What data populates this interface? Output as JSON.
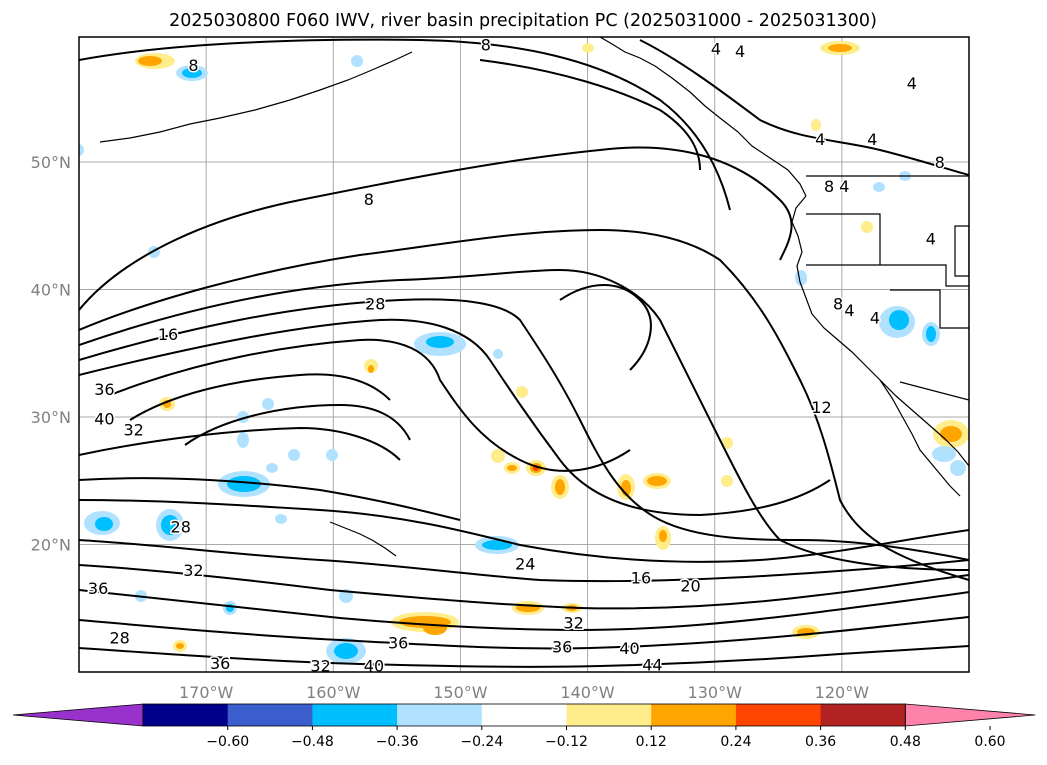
{
  "title": "2025030800 F060 IWV, river basin precipitation PC (2025031000 - 2025031300)",
  "map": {
    "lon_range": [
      -180,
      -110
    ],
    "lat_range": [
      10,
      59.8
    ],
    "lat_ticks": [
      {
        "value": 50,
        "label": "50°N"
      },
      {
        "value": 40,
        "label": "40°N"
      },
      {
        "value": 30,
        "label": "30°N"
      },
      {
        "value": 20,
        "label": "20°N"
      }
    ],
    "lon_ticks": [
      {
        "value": -170,
        "label": "170°W"
      },
      {
        "value": -160,
        "label": "160°W"
      },
      {
        "value": -150,
        "label": "150°W"
      },
      {
        "value": -140,
        "label": "140°W"
      },
      {
        "value": -130,
        "label": "130°W"
      },
      {
        "value": -120,
        "label": "120°W"
      }
    ],
    "grid": true,
    "iwv_contour_labels": [
      {
        "text": "8",
        "lon": -148.0,
        "lat": 59.2
      },
      {
        "text": "4",
        "lon": -129.9,
        "lat": 58.9
      },
      {
        "text": "4",
        "lon": -128.0,
        "lat": 58.7
      },
      {
        "text": "8",
        "lon": -171.0,
        "lat": 57.6
      },
      {
        "text": "4",
        "lon": -114.5,
        "lat": 56.2
      },
      {
        "text": "4",
        "lon": -121.7,
        "lat": 51.8
      },
      {
        "text": "4",
        "lon": -117.6,
        "lat": 51.8
      },
      {
        "text": "8",
        "lon": -112.3,
        "lat": 50.0
      },
      {
        "text": "8",
        "lon": -121.0,
        "lat": 48.1
      },
      {
        "text": "4",
        "lon": -119.8,
        "lat": 48.1
      },
      {
        "text": "8",
        "lon": -157.2,
        "lat": 47.1
      },
      {
        "text": "4",
        "lon": -113.0,
        "lat": 44.0
      },
      {
        "text": "28",
        "lon": -156.7,
        "lat": 38.9
      },
      {
        "text": "16",
        "lon": -173.0,
        "lat": 36.5
      },
      {
        "text": "8",
        "lon": -120.3,
        "lat": 38.9
      },
      {
        "text": "4",
        "lon": -119.4,
        "lat": 38.4
      },
      {
        "text": "4",
        "lon": -117.4,
        "lat": 37.8
      },
      {
        "text": "36",
        "lon": -178.0,
        "lat": 32.2
      },
      {
        "text": "40",
        "lon": -178.0,
        "lat": 29.9
      },
      {
        "text": "32",
        "lon": -175.7,
        "lat": 29.0
      },
      {
        "text": "12",
        "lon": -121.6,
        "lat": 30.8
      },
      {
        "text": "28",
        "lon": -172.0,
        "lat": 21.4
      },
      {
        "text": "24",
        "lon": -144.9,
        "lat": 18.5
      },
      {
        "text": "32",
        "lon": -171.0,
        "lat": 18.0
      },
      {
        "text": "16",
        "lon": -135.8,
        "lat": 17.4
      },
      {
        "text": "20",
        "lon": -131.9,
        "lat": 16.8
      },
      {
        "text": "36",
        "lon": -178.5,
        "lat": 16.6
      },
      {
        "text": "32",
        "lon": -141.1,
        "lat": 13.9
      },
      {
        "text": "28",
        "lon": -176.8,
        "lat": 12.7
      },
      {
        "text": "36",
        "lon": -154.9,
        "lat": 12.3
      },
      {
        "text": "36",
        "lon": -142.0,
        "lat": 12.0
      },
      {
        "text": "40",
        "lon": -136.7,
        "lat": 11.9
      },
      {
        "text": "36",
        "lon": -168.9,
        "lat": 10.7
      },
      {
        "text": "32",
        "lon": -161.0,
        "lat": 10.5
      },
      {
        "text": "40",
        "lon": -156.8,
        "lat": 10.5
      },
      {
        "text": "44",
        "lon": -134.9,
        "lat": 10.6
      }
    ]
  },
  "colorbar": {
    "colors": [
      "#9932cc",
      "#00008b",
      "#3a5fcd",
      "#00bfff",
      "#b0e2ff",
      "#ffffff",
      "#ffec8b",
      "#ffa500",
      "#ff4500",
      "#b22222",
      "#ff82ab"
    ],
    "tick_labels": [
      "−0.60",
      "−0.48",
      "−0.36",
      "−0.24",
      "−0.12",
      "0.12",
      "0.24",
      "0.36",
      "0.48",
      "0.60"
    ],
    "extend": "both"
  }
}
